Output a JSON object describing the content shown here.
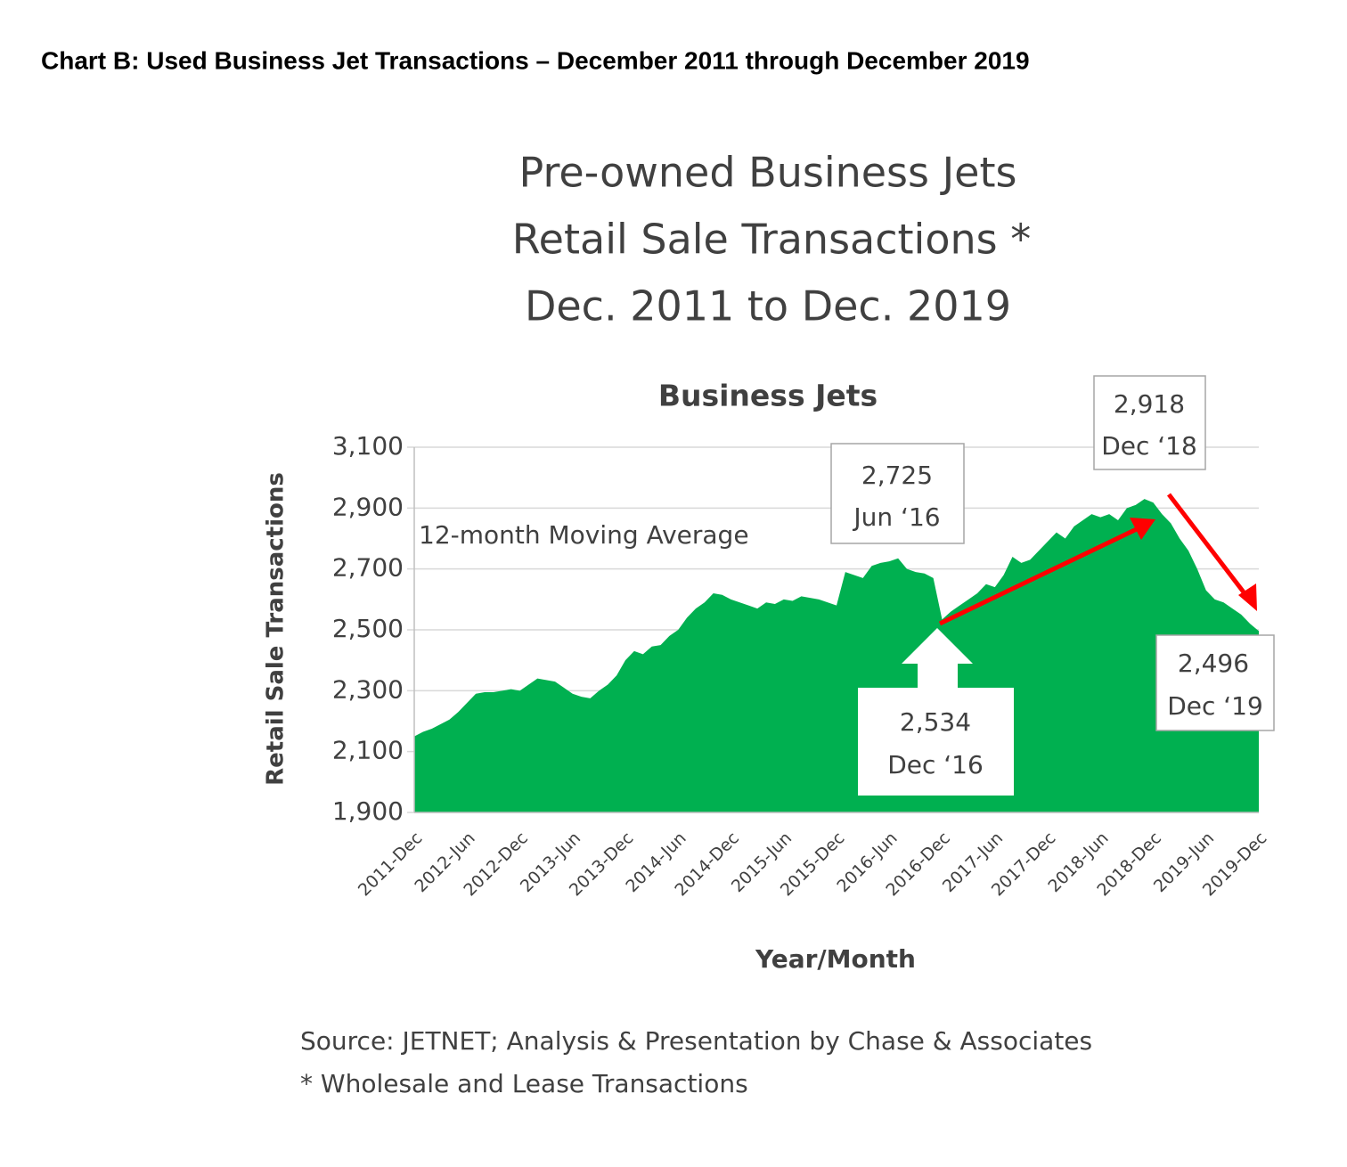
{
  "heading": "Chart B: Used Business Jet Transactions – December 2011 through December 2019",
  "chart_data": {
    "type": "area",
    "title": [
      "Pre-owned Business Jets",
      "Retail Sale Transactions *",
      "Dec. 2011 to Dec. 2019"
    ],
    "subtitle": "Business Jets",
    "xlabel": "Year/Month",
    "ylabel": "Retail Sale Transactions",
    "annotation": "12-month Moving Average",
    "callouts": [
      {
        "label": "2,725",
        "date": "Jun ‘16"
      },
      {
        "label": "2,918",
        "date": "Dec ‘18"
      },
      {
        "label": "2,534",
        "date": "Dec ‘16"
      },
      {
        "label": "2,496",
        "date": "Dec ‘19"
      }
    ],
    "color": "#00b050",
    "grid": true,
    "ylim": [
      1900,
      3100
    ],
    "yticks": [
      {
        "value": 1900,
        "label": "1,900"
      },
      {
        "value": 2100,
        "label": "2,100"
      },
      {
        "value": 2300,
        "label": "2,300"
      },
      {
        "value": 2500,
        "label": "2,500"
      },
      {
        "value": 2700,
        "label": "2,700"
      },
      {
        "value": 2900,
        "label": "2,900"
      },
      {
        "value": 3100,
        "label": "3,100"
      }
    ],
    "categories": [
      "2011-Dec",
      null,
      null,
      null,
      null,
      null,
      "2012-Jun",
      null,
      null,
      null,
      null,
      null,
      "2012-Dec",
      null,
      null,
      null,
      null,
      null,
      "2013-Jun",
      null,
      null,
      null,
      null,
      null,
      "2013-Dec",
      null,
      null,
      null,
      null,
      null,
      "2014-Jun",
      null,
      null,
      null,
      null,
      null,
      "2014-Dec",
      null,
      null,
      null,
      null,
      null,
      "2015-Jun",
      null,
      null,
      null,
      null,
      null,
      "2015-Dec",
      null,
      null,
      null,
      null,
      null,
      "2016-Jun",
      null,
      null,
      null,
      null,
      null,
      "2016-Dec",
      null,
      null,
      null,
      null,
      null,
      "2017-Jun",
      null,
      null,
      null,
      null,
      null,
      "2017-Dec",
      null,
      null,
      null,
      null,
      null,
      "2018-Jun",
      null,
      null,
      null,
      null,
      null,
      "2018-Dec",
      null,
      null,
      null,
      null,
      null,
      "2019-Jun",
      null,
      null,
      null,
      null,
      null,
      "2019-Dec"
    ],
    "values": [
      2150,
      2165,
      2175,
      2190,
      2205,
      2230,
      2260,
      2290,
      2295,
      2295,
      2300,
      2305,
      2300,
      2320,
      2340,
      2335,
      2330,
      2310,
      2290,
      2280,
      2275,
      2300,
      2320,
      2350,
      2400,
      2430,
      2420,
      2445,
      2450,
      2480,
      2500,
      2540,
      2570,
      2590,
      2620,
      2615,
      2600,
      2590,
      2580,
      2570,
      2590,
      2585,
      2600,
      2595,
      2610,
      2605,
      2600,
      2590,
      2580,
      2690,
      2680,
      2670,
      2710,
      2720,
      2725,
      2735,
      2700,
      2690,
      2685,
      2670,
      2534,
      2560,
      2580,
      2600,
      2620,
      2650,
      2640,
      2680,
      2740,
      2720,
      2730,
      2760,
      2790,
      2820,
      2800,
      2840,
      2860,
      2880,
      2870,
      2880,
      2860,
      2900,
      2910,
      2930,
      2918,
      2880,
      2850,
      2800,
      2760,
      2700,
      2630,
      2600,
      2590,
      2570,
      2550,
      2520,
      2496
    ]
  },
  "source": [
    "Source: JETNET; Analysis & Presentation by Chase & Associates",
    "* Wholesale and Lease Transactions"
  ]
}
